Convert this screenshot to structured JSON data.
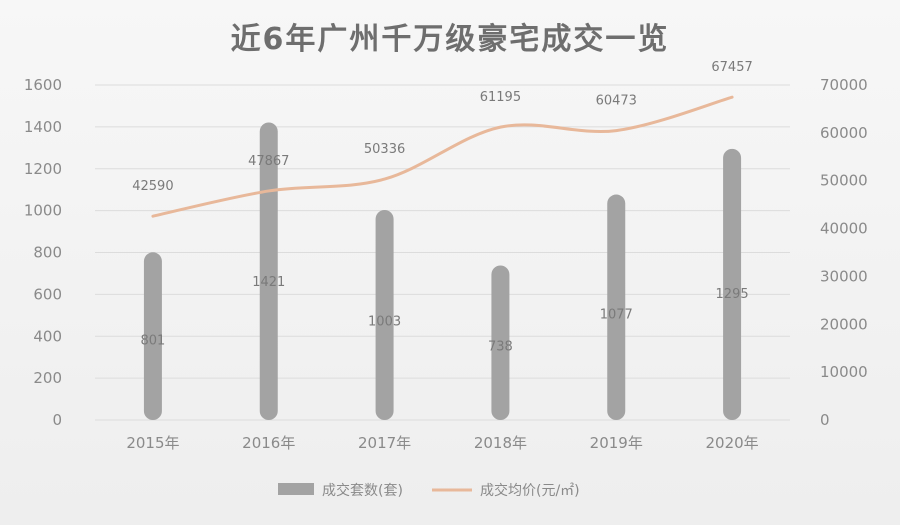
{
  "chart_data": {
    "type": "bar+line",
    "title": "近6年广州千万级豪宅成交一览",
    "categories": [
      "2015年",
      "2016年",
      "2017年",
      "2018年",
      "2019年",
      "2020年"
    ],
    "series": [
      {
        "name": "成交套数(套)",
        "type": "bar",
        "axis": "left",
        "color": "#a3a3a3",
        "values": [
          801,
          1421,
          1003,
          738,
          1077,
          1295
        ]
      },
      {
        "name": "成交均价(元/㎡)",
        "type": "line",
        "axis": "right",
        "color": "#e8b89a",
        "values": [
          42590,
          47867,
          50336,
          61195,
          60473,
          67457
        ]
      }
    ],
    "ylim_left": [
      0,
      1600
    ],
    "yticks_left": [
      "0",
      "200",
      "400",
      "600",
      "800",
      "1000",
      "1200",
      "1400",
      "1600"
    ],
    "ylim_right": [
      0,
      70000
    ],
    "yticks_right": [
      "0",
      "10000",
      "20000",
      "30000",
      "40000",
      "50000",
      "60000",
      "70000"
    ],
    "grid": true,
    "legend_position": "bottom"
  }
}
